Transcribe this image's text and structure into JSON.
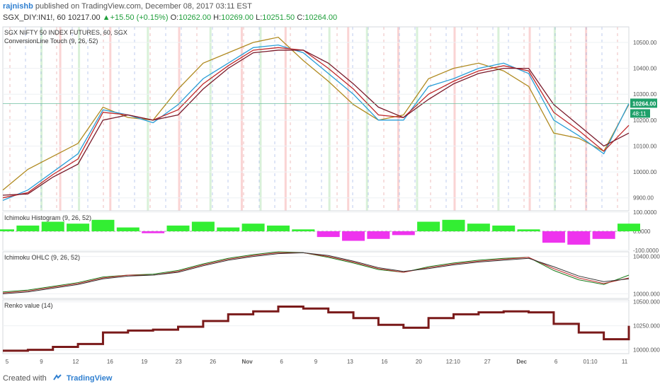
{
  "header": {
    "author": "rajnishb",
    "published": "published on TradingView.com, December 08, 2017 03:11 EST",
    "symbol": "SGX_DIY:IN1!, 60",
    "open_label": "10217.00",
    "change": "▲+15.50 (+0.15%)",
    "o_label": "O:",
    "o_value": "10262.00",
    "h_label": "H:",
    "h_value": "10269.00",
    "l_label": "L:",
    "l_value": "10251.50",
    "c_label": "C:",
    "c_value": "10264.00"
  },
  "footer": {
    "created_with": "Created with",
    "brand": "TradingView"
  },
  "colors": {
    "red_band": "#f9c9c9",
    "green_band": "#cfeecf",
    "grid": "#eef0f3",
    "price_line": "#8fa0d8",
    "histo_green": "#33ee33",
    "histo_magenta": "#ee33ee",
    "renko_up": "#1a3d1a",
    "renko_down": "#7a1a1a",
    "last_price_bg": "#1fa06a"
  },
  "chart_data": [
    {
      "type": "line",
      "name": "main-price-pane",
      "title": "SGX NIFTY 50 INDEX FUTURES, 60, SGX",
      "subtitle": "ConversionLine Touch (9, 26, 52)",
      "ylim": [
        9850,
        10560
      ],
      "yticks": [
        "10500.00",
        "10400.00",
        "10300.00",
        "10200.00",
        "10100.00",
        "10000.00",
        "9900.00"
      ],
      "ytick_values": [
        10500,
        10400,
        10300,
        10200,
        10100,
        10000,
        9900
      ],
      "last_price": "10264.00",
      "last_price_value": 10264,
      "countdown": "48:11",
      "x": [
        0,
        4,
        8,
        12,
        16,
        20,
        24,
        28,
        32,
        36,
        40,
        44,
        48,
        52,
        56,
        60,
        64,
        68,
        72,
        76,
        80,
        84,
        88,
        92,
        96,
        100
      ],
      "series": [
        {
          "color": "#b08a20",
          "values": [
            9930,
            10010,
            10060,
            10110,
            10250,
            10210,
            10200,
            10320,
            10420,
            10460,
            10500,
            10520,
            10430,
            10350,
            10260,
            10200,
            10220,
            10360,
            10400,
            10420,
            10390,
            10330,
            10150,
            10130,
            10080,
            10260
          ]
        },
        {
          "color": "#2a9ed8",
          "values": [
            9890,
            9930,
            10000,
            10070,
            10240,
            10220,
            10190,
            10260,
            10360,
            10420,
            10480,
            10490,
            10460,
            10380,
            10300,
            10200,
            10200,
            10330,
            10360,
            10400,
            10420,
            10380,
            10200,
            10140,
            10070,
            10264
          ]
        },
        {
          "color": "#c0292b",
          "values": [
            9900,
            9920,
            9990,
            10050,
            10230,
            10220,
            10200,
            10240,
            10340,
            10410,
            10470,
            10480,
            10470,
            10400,
            10320,
            10220,
            10210,
            10300,
            10350,
            10390,
            10410,
            10390,
            10230,
            10160,
            10080,
            10180
          ]
        },
        {
          "color": "#7a1a2a",
          "values": [
            9910,
            9915,
            9980,
            10030,
            10200,
            10220,
            10200,
            10220,
            10320,
            10400,
            10460,
            10470,
            10470,
            10420,
            10340,
            10250,
            10210,
            10280,
            10340,
            10380,
            10400,
            10400,
            10260,
            10180,
            10100,
            10150
          ]
        }
      ]
    },
    {
      "type": "bar",
      "name": "ichimoku-histogram",
      "title": "Ichimoku Histogram (9, 26, 52)",
      "ylim": [
        -100,
        100
      ],
      "yticks": [
        "100.0000",
        "0.0000",
        "-100.0000"
      ],
      "ytick_values": [
        100,
        0,
        -100
      ],
      "x": [
        0,
        4,
        8,
        12,
        16,
        20,
        24,
        28,
        32,
        36,
        40,
        44,
        48,
        52,
        56,
        60,
        64,
        68,
        72,
        76,
        80,
        84,
        88,
        92,
        96,
        100
      ],
      "values": [
        10,
        30,
        50,
        40,
        60,
        20,
        -10,
        30,
        50,
        20,
        40,
        30,
        10,
        -30,
        -50,
        -40,
        -20,
        50,
        60,
        40,
        30,
        10,
        -60,
        -70,
        -40,
        40
      ]
    },
    {
      "type": "line",
      "name": "ichimoku-ohlc",
      "title": "Ichimoku OHLC (9, 26, 52)",
      "ylim": [
        9950,
        10450
      ],
      "yticks": [
        "10400.0000",
        "10000.0000"
      ],
      "ytick_values": [
        10400,
        10000
      ],
      "x": [
        0,
        4,
        8,
        12,
        16,
        20,
        24,
        28,
        32,
        36,
        40,
        44,
        48,
        52,
        56,
        60,
        64,
        68,
        72,
        76,
        80,
        84,
        88,
        92,
        96,
        100
      ],
      "series": [
        {
          "color": "#1a7a1a",
          "values": [
            10020,
            10040,
            10080,
            10120,
            10180,
            10200,
            10210,
            10250,
            10320,
            10380,
            10420,
            10450,
            10440,
            10390,
            10330,
            10260,
            10230,
            10290,
            10330,
            10360,
            10380,
            10390,
            10250,
            10150,
            10100,
            10200
          ]
        },
        {
          "color": "#c0292b",
          "values": [
            10010,
            10030,
            10070,
            10110,
            10170,
            10200,
            10200,
            10240,
            10310,
            10370,
            10410,
            10440,
            10440,
            10400,
            10340,
            10270,
            10230,
            10280,
            10320,
            10350,
            10370,
            10390,
            10270,
            10170,
            10110,
            10170
          ]
        },
        {
          "color": "#333333",
          "values": [
            10000,
            10020,
            10060,
            10100,
            10160,
            10190,
            10200,
            10230,
            10300,
            10360,
            10400,
            10430,
            10440,
            10410,
            10350,
            10280,
            10240,
            10270,
            10310,
            10340,
            10360,
            10380,
            10290,
            10190,
            10130,
            10160
          ]
        }
      ]
    },
    {
      "type": "line",
      "name": "renko-value",
      "title": "Renko value (14)",
      "ylim": [
        9960,
        10520
      ],
      "yticks": [
        "10500.0000",
        "10250.0000",
        "10000.0000"
      ],
      "ytick_values": [
        10500,
        10250,
        10000
      ],
      "x": [
        0,
        4,
        8,
        12,
        16,
        20,
        24,
        28,
        32,
        36,
        40,
        44,
        48,
        52,
        56,
        60,
        64,
        68,
        72,
        76,
        80,
        84,
        88,
        92,
        96,
        100
      ],
      "values": [
        9990,
        10000,
        10030,
        10060,
        10180,
        10200,
        10210,
        10240,
        10300,
        10370,
        10400,
        10450,
        10430,
        10390,
        10330,
        10260,
        10230,
        10330,
        10370,
        10390,
        10400,
        10390,
        10270,
        10180,
        10110,
        10250
      ]
    }
  ],
  "x_axis": {
    "ticks": [
      "5",
      "9",
      "12",
      "16",
      "19",
      "23",
      "26",
      "Nov",
      "6",
      "9",
      "13",
      "16",
      "20",
      "12:10",
      "27",
      "Dec",
      "6",
      "01:10",
      "11"
    ],
    "bold_ticks": [
      "Nov",
      "Dec"
    ]
  }
}
